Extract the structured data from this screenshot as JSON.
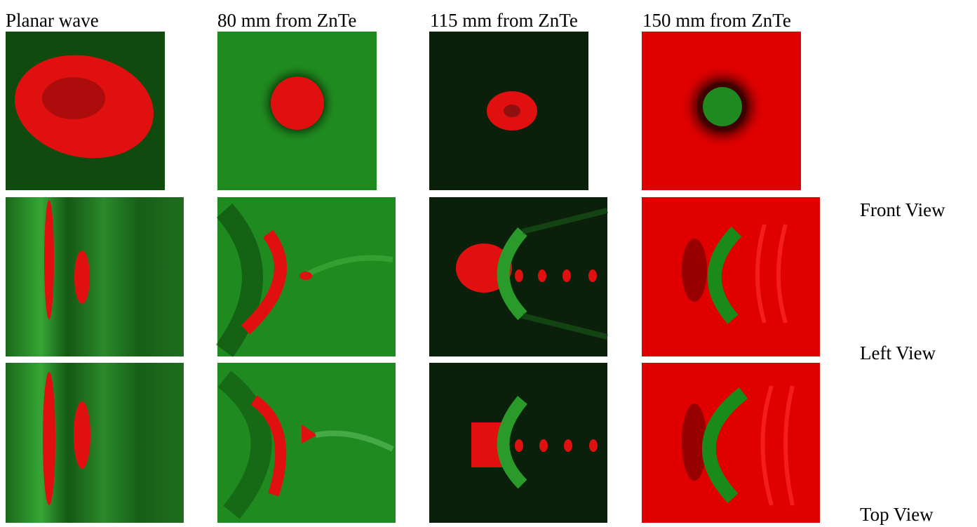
{
  "columns": [
    "Planar wave",
    "80 mm from ZnTe",
    "115 mm from ZnTe",
    "150 mm from ZnTe"
  ],
  "rows": [
    "Front View",
    "Left View",
    "Top View"
  ]
}
